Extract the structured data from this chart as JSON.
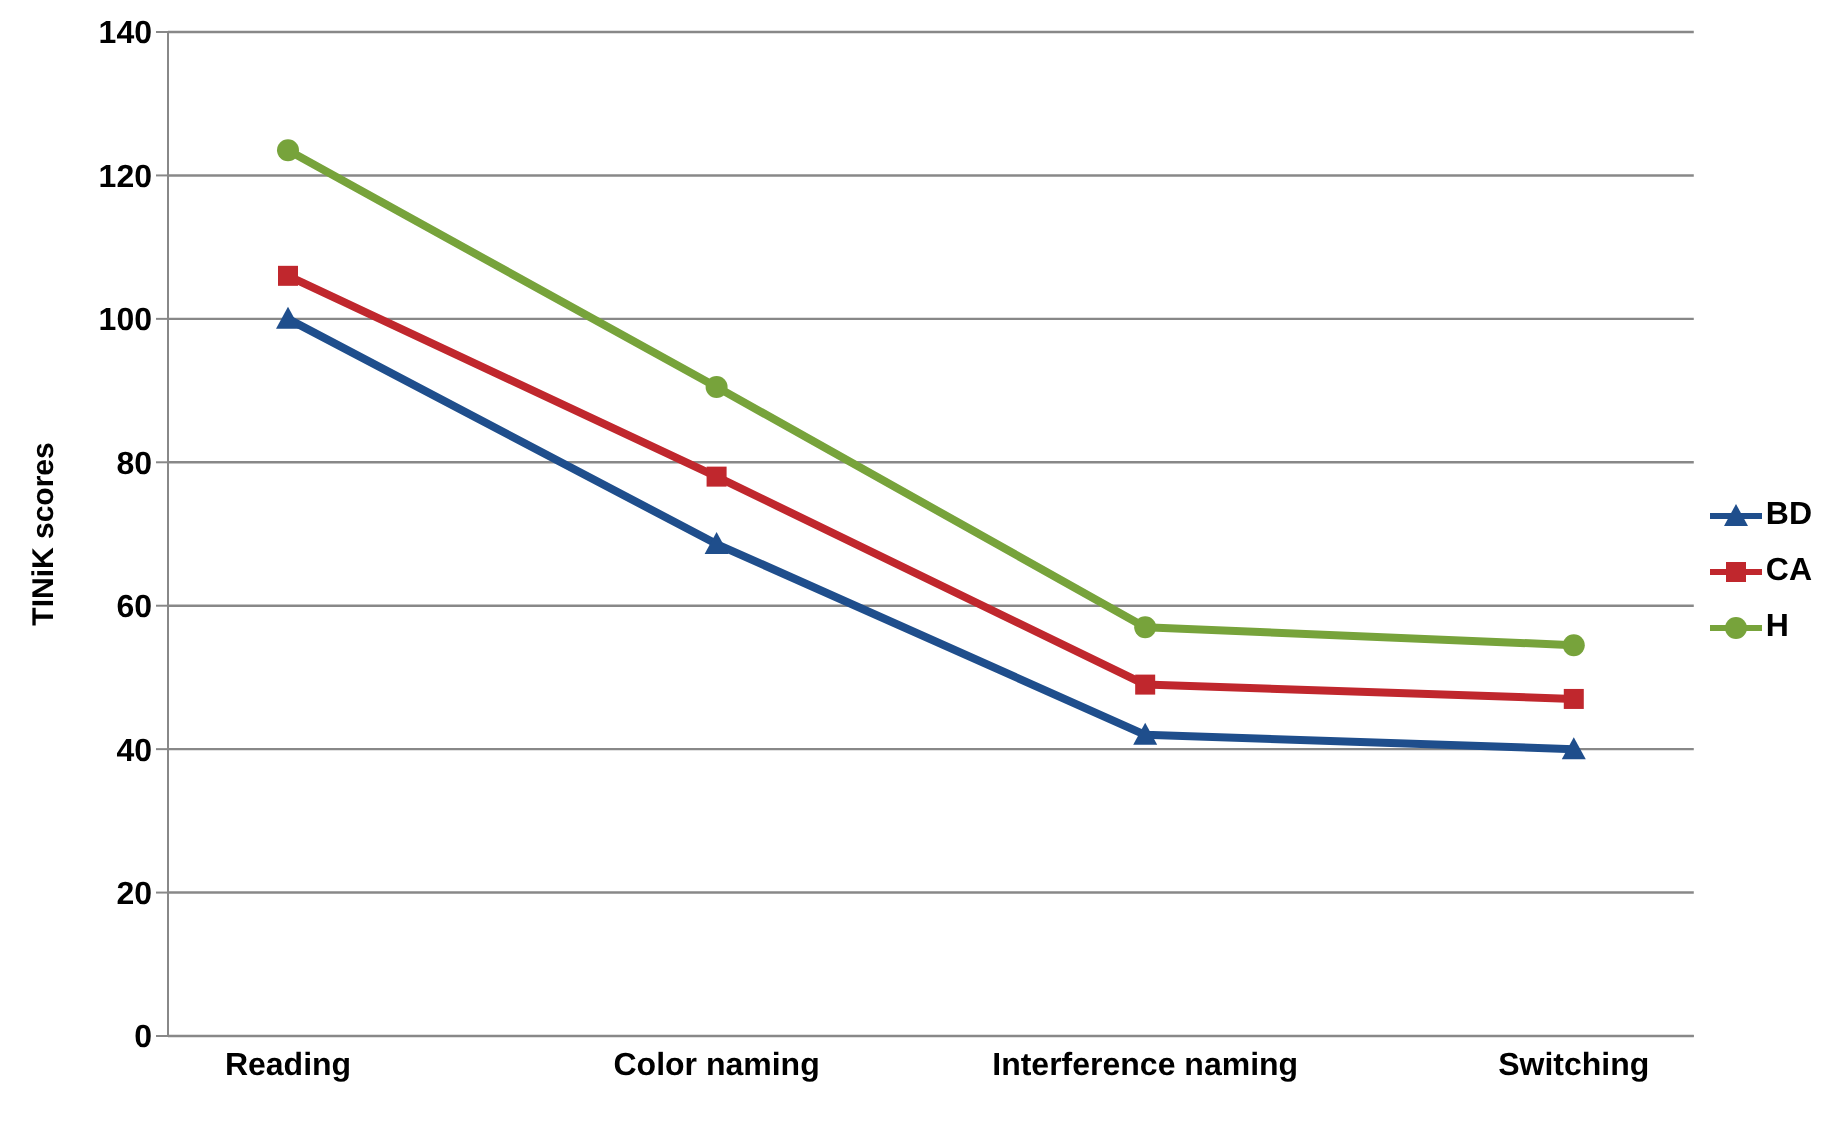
{
  "chart_data": {
    "type": "line",
    "ylabel": "TINiK scores",
    "categories": [
      "Reading",
      "Color naming",
      "Interference naming",
      "Switching"
    ],
    "series": [
      {
        "name": "BD",
        "color": "#1f4e8c",
        "marker": "triangle",
        "values": [
          100,
          68.6,
          42,
          40
        ]
      },
      {
        "name": "CA",
        "color": "#c0272d",
        "marker": "square",
        "values": [
          106,
          78,
          49,
          47
        ]
      },
      {
        "name": "H",
        "color": "#77a33b",
        "marker": "circle",
        "values": [
          123.5,
          90.5,
          57,
          54.5
        ]
      }
    ],
    "ylim": [
      0,
      140
    ],
    "yticks": [
      0,
      20,
      40,
      60,
      80,
      100,
      120,
      140
    ],
    "grid": "y",
    "legend": "right",
    "line_style": "solid"
  }
}
